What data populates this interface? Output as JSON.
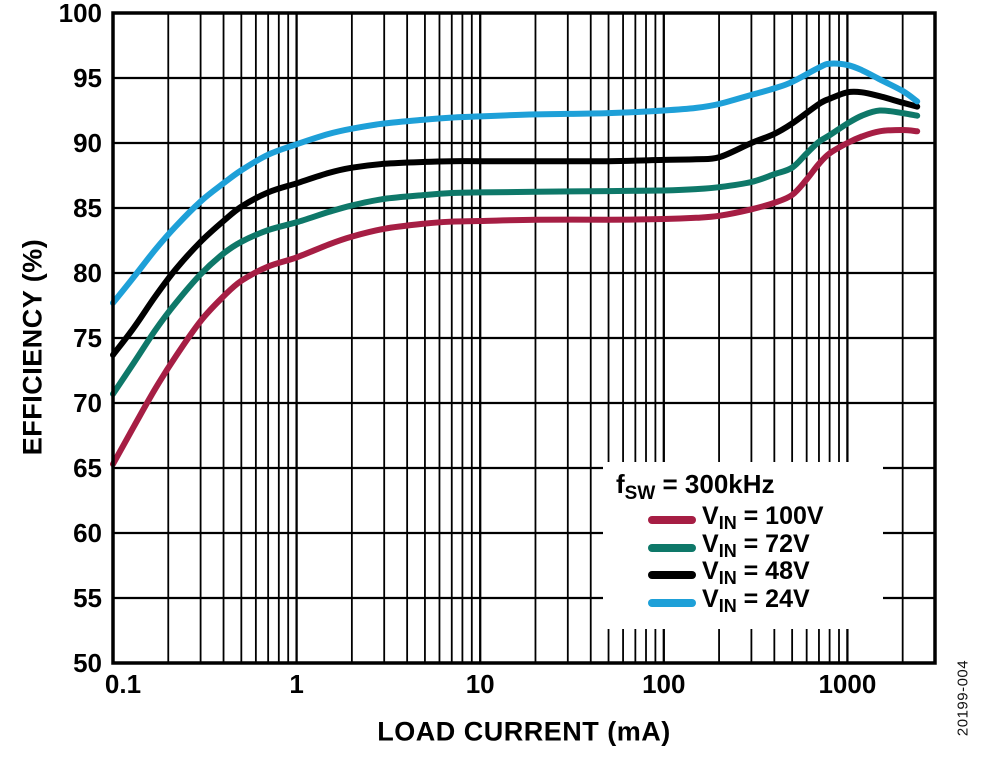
{
  "figure": {
    "fig_number": "20199-004",
    "background": "#ffffff",
    "frame_color": "#000000",
    "grid_color": "#000000"
  },
  "chart_data": {
    "type": "line",
    "title": "",
    "xlabel": "LOAD CURRENT (mA)",
    "ylabel": "EFFICIENCY (%)",
    "x_scale": "log",
    "y_scale": "linear",
    "xlim": [
      0.1,
      3000
    ],
    "ylim": [
      50,
      100
    ],
    "grid": {
      "horizontal_major_step": 5,
      "vertical": "log decades with minor lines",
      "frame": true
    },
    "x_ticks": [
      {
        "v": 0.1,
        "label": "0.1"
      },
      {
        "v": 1,
        "label": "1"
      },
      {
        "v": 10,
        "label": "10"
      },
      {
        "v": 100,
        "label": "100"
      },
      {
        "v": 1000,
        "label": "1000"
      }
    ],
    "y_ticks": [
      {
        "v": 100,
        "label": "100"
      },
      {
        "v": 95,
        "label": "95"
      },
      {
        "v": 90,
        "label": "90"
      },
      {
        "v": 85,
        "label": "85"
      },
      {
        "v": 80,
        "label": "80"
      },
      {
        "v": 75,
        "label": "75"
      },
      {
        "v": 70,
        "label": "70"
      },
      {
        "v": 65,
        "label": "65"
      },
      {
        "v": 60,
        "label": "60"
      },
      {
        "v": 55,
        "label": "55"
      },
      {
        "v": 50,
        "label": "50"
      }
    ],
    "legend": {
      "position": "bottom-right",
      "title_parts": {
        "pre": "f",
        "sub": "SW",
        "post": " = 300kHz"
      },
      "entries": [
        {
          "pre": "V",
          "sub": "IN",
          "post": " = 100V",
          "color": "#A61E44"
        },
        {
          "pre": "V",
          "sub": "IN",
          "post": " = 72V",
          "color": "#0E7869"
        },
        {
          "pre": "V",
          "sub": "IN",
          "post": " = 48V",
          "color": "#000000"
        },
        {
          "pre": "V",
          "sub": "IN",
          "post": " = 24V",
          "color": "#1EA0D8"
        }
      ]
    },
    "series": [
      {
        "name": "VIN = 100V",
        "color": "#A61E44",
        "points": [
          [
            0.1,
            65.3
          ],
          [
            0.13,
            68.2
          ],
          [
            0.17,
            71.1
          ],
          [
            0.22,
            73.6
          ],
          [
            0.3,
            76.3
          ],
          [
            0.4,
            78.2
          ],
          [
            0.5,
            79.4
          ],
          [
            0.7,
            80.5
          ],
          [
            1,
            81.2
          ],
          [
            1.5,
            82.2
          ],
          [
            2,
            82.8
          ],
          [
            3,
            83.4
          ],
          [
            5,
            83.8
          ],
          [
            7,
            83.95
          ],
          [
            10,
            84.0
          ],
          [
            20,
            84.1
          ],
          [
            50,
            84.1
          ],
          [
            100,
            84.15
          ],
          [
            150,
            84.25
          ],
          [
            200,
            84.4
          ],
          [
            300,
            84.9
          ],
          [
            400,
            85.4
          ],
          [
            500,
            86.0
          ],
          [
            600,
            87.2
          ],
          [
            700,
            88.4
          ],
          [
            800,
            89.2
          ],
          [
            1000,
            90.0
          ],
          [
            1200,
            90.5
          ],
          [
            1500,
            90.9
          ],
          [
            2000,
            91.0
          ],
          [
            2400,
            90.9
          ]
        ]
      },
      {
        "name": "VIN = 72V",
        "color": "#0E7869",
        "points": [
          [
            0.1,
            70.7
          ],
          [
            0.13,
            73.1
          ],
          [
            0.17,
            75.6
          ],
          [
            0.22,
            77.7
          ],
          [
            0.3,
            79.9
          ],
          [
            0.4,
            81.5
          ],
          [
            0.5,
            82.4
          ],
          [
            0.7,
            83.3
          ],
          [
            1,
            83.9
          ],
          [
            1.5,
            84.7
          ],
          [
            2,
            85.2
          ],
          [
            3,
            85.7
          ],
          [
            5,
            86.0
          ],
          [
            7,
            86.15
          ],
          [
            10,
            86.2
          ],
          [
            20,
            86.25
          ],
          [
            50,
            86.3
          ],
          [
            100,
            86.35
          ],
          [
            150,
            86.45
          ],
          [
            200,
            86.6
          ],
          [
            300,
            87.0
          ],
          [
            400,
            87.6
          ],
          [
            500,
            88.1
          ],
          [
            600,
            89.2
          ],
          [
            700,
            90.1
          ],
          [
            800,
            90.6
          ],
          [
            1000,
            91.5
          ],
          [
            1200,
            92.1
          ],
          [
            1500,
            92.5
          ],
          [
            2000,
            92.3
          ],
          [
            2400,
            92.1
          ]
        ]
      },
      {
        "name": "VIN = 48V",
        "color": "#000000",
        "points": [
          [
            0.1,
            73.7
          ],
          [
            0.13,
            75.8
          ],
          [
            0.17,
            78.2
          ],
          [
            0.22,
            80.3
          ],
          [
            0.3,
            82.4
          ],
          [
            0.4,
            84.0
          ],
          [
            0.5,
            85.1
          ],
          [
            0.7,
            86.2
          ],
          [
            1,
            86.9
          ],
          [
            1.5,
            87.7
          ],
          [
            2,
            88.1
          ],
          [
            3,
            88.4
          ],
          [
            5,
            88.55
          ],
          [
            7,
            88.6
          ],
          [
            10,
            88.6
          ],
          [
            20,
            88.6
          ],
          [
            50,
            88.6
          ],
          [
            100,
            88.7
          ],
          [
            150,
            88.75
          ],
          [
            200,
            88.9
          ],
          [
            300,
            90.0
          ],
          [
            400,
            90.7
          ],
          [
            500,
            91.5
          ],
          [
            700,
            93.0
          ],
          [
            800,
            93.4
          ],
          [
            1000,
            93.9
          ],
          [
            1200,
            93.9
          ],
          [
            1500,
            93.6
          ],
          [
            2000,
            93.1
          ],
          [
            2400,
            92.8
          ]
        ]
      },
      {
        "name": "VIN = 24V",
        "color": "#1EA0D8",
        "points": [
          [
            0.1,
            77.7
          ],
          [
            0.13,
            79.7
          ],
          [
            0.17,
            81.8
          ],
          [
            0.22,
            83.6
          ],
          [
            0.3,
            85.5
          ],
          [
            0.4,
            86.9
          ],
          [
            0.5,
            87.9
          ],
          [
            0.7,
            89.1
          ],
          [
            1,
            89.9
          ],
          [
            1.5,
            90.7
          ],
          [
            2,
            91.1
          ],
          [
            3,
            91.5
          ],
          [
            5,
            91.8
          ],
          [
            7,
            91.95
          ],
          [
            10,
            92.05
          ],
          [
            20,
            92.2
          ],
          [
            50,
            92.3
          ],
          [
            100,
            92.5
          ],
          [
            150,
            92.7
          ],
          [
            200,
            93.0
          ],
          [
            300,
            93.7
          ],
          [
            400,
            94.2
          ],
          [
            500,
            94.7
          ],
          [
            700,
            95.8
          ],
          [
            800,
            96.1
          ],
          [
            1000,
            96.0
          ],
          [
            1200,
            95.6
          ],
          [
            1500,
            94.9
          ],
          [
            2000,
            94.0
          ],
          [
            2400,
            93.2
          ]
        ]
      }
    ]
  }
}
